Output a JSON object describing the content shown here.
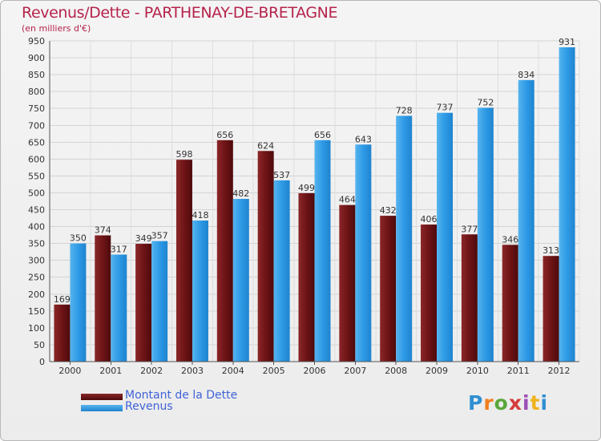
{
  "title": "Revenus/Dette - PARTHENAY-DE-BRETAGNE",
  "subtitle": "(en milliers d'€)",
  "brand": "Proxiti",
  "colors": {
    "dette": "#6e1416",
    "revenus": "#2e9ae6",
    "title": "#b5244b",
    "legend_text": "#3f63d8"
  },
  "chart_data": {
    "type": "bar",
    "title": "Revenus/Dette - PARTHENAY-DE-BRETAGNE",
    "ylabel": "(en milliers d'€)",
    "xlabel": "",
    "ylim": [
      0,
      950
    ],
    "yticks": [
      0,
      50,
      100,
      150,
      200,
      250,
      300,
      350,
      400,
      450,
      500,
      550,
      600,
      650,
      700,
      750,
      800,
      850,
      900,
      950
    ],
    "grid": true,
    "categories": [
      "2000",
      "2001",
      "2002",
      "2003",
      "2004",
      "2005",
      "2006",
      "2007",
      "2008",
      "2009",
      "2010",
      "2011",
      "2012"
    ],
    "series": [
      {
        "name": "Montant de la Dette",
        "color": "#6e1416",
        "values": [
          169,
          374,
          349,
          598,
          656,
          624,
          499,
          464,
          432,
          406,
          377,
          346,
          313
        ]
      },
      {
        "name": "Revenus",
        "color": "#2e9ae6",
        "values": [
          350,
          317,
          357,
          418,
          482,
          537,
          656,
          643,
          728,
          737,
          752,
          834,
          931
        ]
      }
    ],
    "legend_position": "bottom-left"
  }
}
